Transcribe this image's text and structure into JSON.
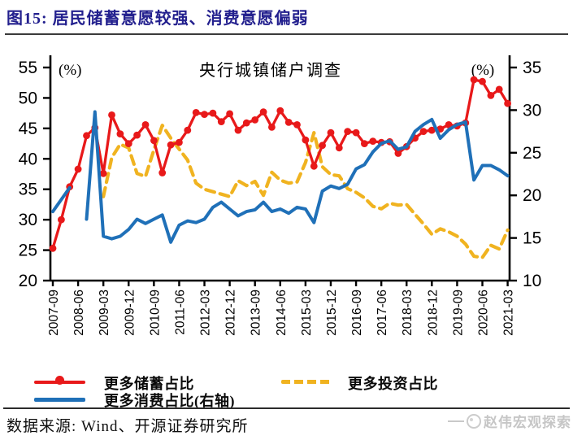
{
  "header": {
    "title": "图15:  居民储蓄意愿较强、消费意愿偏弱"
  },
  "colors": {
    "red": "#e8191a",
    "yellow": "#f0b320",
    "blue": "#1f70b8",
    "title_navy": "#23208e",
    "axis": "#000000",
    "watermark_gray": "#c6c6c6"
  },
  "chart_data": {
    "type": "line",
    "title": "央行城镇储户调查",
    "left_axis": {
      "unit": "(%)",
      "min": 20,
      "max": 55,
      "ticks": [
        55,
        50,
        45,
        40,
        35,
        30,
        25,
        20
      ]
    },
    "right_axis": {
      "unit": "(%)",
      "min": 10,
      "max": 35,
      "ticks": [
        35,
        30,
        25,
        20,
        15,
        10
      ]
    },
    "grid": false,
    "legend_position": "bottom",
    "x_tick_labels": [
      "2007-09",
      "2008-06",
      "2009-03",
      "2009-12",
      "2010-09",
      "2011-06",
      "2012-03",
      "2012-12",
      "2013-09",
      "2014-06",
      "2015-03",
      "2015-12",
      "2016-09",
      "2017-06",
      "2018-03",
      "2018-12",
      "2019-09",
      "2020-06",
      "2021-03"
    ],
    "categories": [
      "2007-09",
      "2007-12",
      "2008-03",
      "2008-06",
      "2008-09",
      "2008-12",
      "2009-03",
      "2009-06",
      "2009-09",
      "2009-12",
      "2010-03",
      "2010-06",
      "2010-09",
      "2010-12",
      "2011-03",
      "2011-06",
      "2011-09",
      "2011-12",
      "2012-03",
      "2012-06",
      "2012-09",
      "2012-12",
      "2013-03",
      "2013-06",
      "2013-09",
      "2013-12",
      "2014-03",
      "2014-06",
      "2014-09",
      "2014-12",
      "2015-03",
      "2015-06",
      "2015-09",
      "2015-12",
      "2016-03",
      "2016-06",
      "2016-09",
      "2016-12",
      "2017-03",
      "2017-06",
      "2017-09",
      "2017-12",
      "2018-03",
      "2018-06",
      "2018-09",
      "2018-12",
      "2019-03",
      "2019-06",
      "2019-09",
      "2019-12",
      "2020-03",
      "2020-06",
      "2020-09",
      "2020-12",
      "2021-03"
    ],
    "series": [
      {
        "name": "更多储蓄占比",
        "axis": "left",
        "style": "solid-markers",
        "color": "#e8191a",
        "values": [
          25.3,
          30.0,
          35.4,
          38.3,
          43.8,
          45.1,
          37.6,
          47.2,
          44.1,
          42.5,
          43.9,
          45.6,
          43.0,
          37.7,
          42.3,
          42.7,
          44.7,
          47.6,
          47.3,
          47.5,
          46.1,
          47.4,
          44.7,
          45.9,
          46.4,
          47.7,
          45.2,
          47.9,
          46.0,
          45.6,
          43.1,
          38.8,
          42.2,
          44.3,
          41.8,
          44.5,
          44.3,
          42.5,
          42.9,
          42.7,
          42.8,
          40.9,
          42.0,
          43.4,
          44.5,
          44.7,
          44.9,
          45.6,
          45.4,
          45.9,
          53.0,
          52.7,
          50.4,
          51.4,
          49.1
        ]
      },
      {
        "name": "更多投资占比",
        "axis": "left",
        "style": "dashed",
        "color": "#f0b320",
        "values": [
          null,
          null,
          null,
          null,
          null,
          null,
          33.8,
          40.2,
          42.4,
          41.8,
          37.6,
          37.1,
          41.5,
          45.5,
          43.4,
          41.6,
          39.8,
          36.0,
          35.0,
          34.6,
          34.2,
          33.8,
          36.4,
          35.6,
          36.3,
          34.0,
          37.8,
          36.5,
          36.0,
          36.2,
          39.4,
          44.3,
          38.7,
          37.4,
          37.2,
          35.1,
          34.5,
          33.6,
          32.2,
          31.8,
          32.7,
          32.4,
          32.5,
          30.9,
          29.3,
          27.6,
          28.5,
          28.0,
          27.3,
          26.0,
          24.0,
          23.8,
          25.8,
          25.2,
          28.3
        ]
      },
      {
        "name": "更多消费占比(右轴)",
        "axis": "right",
        "style": "solid",
        "color": "#1f70b8",
        "values": [
          18.1,
          19.5,
          20.9,
          null,
          17.2,
          29.8,
          15.2,
          14.9,
          15.2,
          16.0,
          17.2,
          16.7,
          17.2,
          17.7,
          14.5,
          16.5,
          17.0,
          16.8,
          17.2,
          18.6,
          19.2,
          18.4,
          17.6,
          18.1,
          18.3,
          19.2,
          18.1,
          18.4,
          17.9,
          18.6,
          18.4,
          16.8,
          20.5,
          21.1,
          20.8,
          21.3,
          23.1,
          23.6,
          25.1,
          26.1,
          26.4,
          25.4,
          25.7,
          27.5,
          28.3,
          28.9,
          26.7,
          27.7,
          28.3,
          28.6,
          21.8,
          23.5,
          23.5,
          23.0,
          22.3
        ]
      }
    ]
  },
  "legend": {
    "items": [
      {
        "label": "更多储蓄占比"
      },
      {
        "label": "更多投资占比"
      },
      {
        "label": "更多消费占比(右轴)"
      }
    ]
  },
  "footer": {
    "source": "数据来源: Wind、开源证券研究所",
    "watermark": "赵伟宏观探索"
  }
}
